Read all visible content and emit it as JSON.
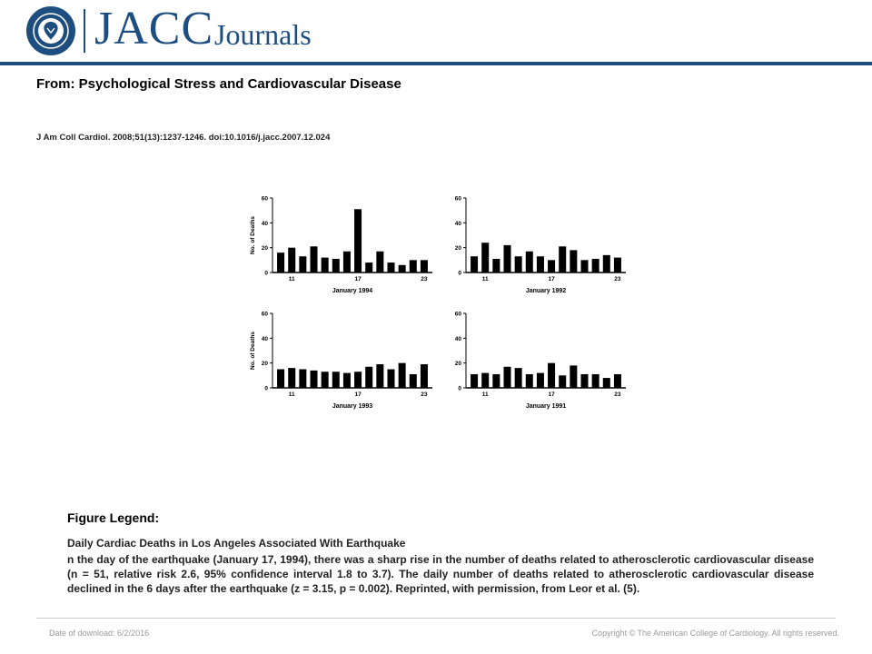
{
  "header": {
    "brand_main": "JACC",
    "brand_sub": "Journals",
    "seal_text": "AMERICAN COLLEGE OF CARDIOLOGY",
    "brand_color": "#1d4e7f"
  },
  "article": {
    "from_title": "From: Psychological Stress and Cardiovascular Disease",
    "citation": "J Am Coll Cardiol. 2008;51(13):1237-1246. doi:10.1016/j.jacc.2007.12.024"
  },
  "legend": {
    "heading": "Figure Legend:",
    "subtitle": "Daily Cardiac Deaths in Los Angeles Associated With Earthquake",
    "body": "n the day of the earthquake (January 17, 1994), there was a sharp rise in the number of deaths related to atherosclerotic cardiovascular disease (n = 51, relative risk 2.6, 95% confidence interval 1.8 to 3.7). The daily number of deaths related to atherosclerotic cardiovascular disease declined in the 6 days after the earthquake (z = 3.15, p = 0.002). Reprinted, with permission, from Leor et al. (5)."
  },
  "footer": {
    "date": "Date of download: 6/2/2016",
    "copyright": "Copyright © The American College of Cardiology. All rights reserved."
  },
  "chart_data": [
    {
      "type": "bar",
      "title": "January 1994",
      "ylabel": "No. of Deaths",
      "ylim": [
        0,
        60
      ],
      "yticks": [
        0,
        20,
        40,
        60
      ],
      "x": [
        10,
        11,
        12,
        13,
        14,
        15,
        16,
        17,
        18,
        19,
        20,
        21,
        22,
        23
      ],
      "xticks": [
        11,
        17,
        23
      ],
      "values": [
        16,
        20,
        13,
        21,
        12,
        11,
        17,
        51,
        8,
        17,
        8,
        6,
        10,
        10
      ],
      "bar_color": "#000000"
    },
    {
      "type": "bar",
      "title": "January 1992",
      "ylabel": "",
      "ylim": [
        0,
        60
      ],
      "yticks": [
        0,
        20,
        40,
        60
      ],
      "x": [
        10,
        11,
        12,
        13,
        14,
        15,
        16,
        17,
        18,
        19,
        20,
        21,
        22,
        23
      ],
      "xticks": [
        11,
        17,
        23
      ],
      "values": [
        13,
        24,
        11,
        22,
        13,
        17,
        13,
        10,
        21,
        18,
        10,
        11,
        14,
        12
      ],
      "bar_color": "#000000"
    },
    {
      "type": "bar",
      "title": "January 1993",
      "ylabel": "No. of Deaths",
      "ylim": [
        0,
        60
      ],
      "yticks": [
        0,
        20,
        40,
        60
      ],
      "x": [
        10,
        11,
        12,
        13,
        14,
        15,
        16,
        17,
        18,
        19,
        20,
        21,
        22,
        23
      ],
      "xticks": [
        11,
        17,
        23
      ],
      "values": [
        15,
        16,
        15,
        14,
        13,
        13,
        12,
        13,
        17,
        19,
        15,
        20,
        11,
        19
      ],
      "bar_color": "#000000"
    },
    {
      "type": "bar",
      "title": "January 1991",
      "ylabel": "",
      "ylim": [
        0,
        60
      ],
      "yticks": [
        0,
        20,
        40,
        60
      ],
      "x": [
        10,
        11,
        12,
        13,
        14,
        15,
        16,
        17,
        18,
        19,
        20,
        21,
        22,
        23
      ],
      "xticks": [
        11,
        17,
        23
      ],
      "values": [
        11,
        12,
        11,
        17,
        16,
        11,
        12,
        20,
        10,
        18,
        11,
        11,
        8,
        11
      ],
      "bar_color": "#000000"
    }
  ]
}
